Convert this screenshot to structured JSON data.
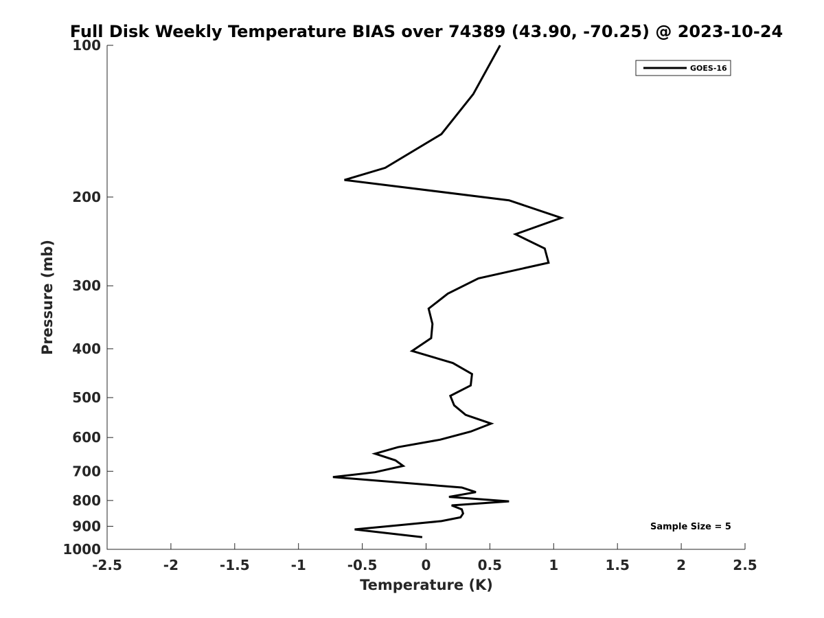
{
  "chart_data": {
    "type": "line",
    "title": "Full Disk Weekly Temperature BIAS over 74389 (43.90, -70.25) @ 2023-10-24",
    "xlabel": "Temperature (K)",
    "ylabel": "Pressure (mb)",
    "xlim": [
      -2.5,
      2.5
    ],
    "ylim": [
      100,
      1000
    ],
    "y_scale": "log",
    "y_reversed": true,
    "x_ticks": [
      -2.5,
      -2,
      -1.5,
      -1,
      -0.5,
      0,
      0.5,
      1,
      1.5,
      2,
      2.5
    ],
    "x_tick_labels": [
      "-2.5",
      "-2",
      "-1.5",
      "-1",
      "-0.5",
      "0",
      "0.5",
      "1",
      "1.5",
      "2",
      "2.5"
    ],
    "y_ticks": [
      100,
      200,
      300,
      400,
      500,
      600,
      700,
      800,
      900,
      1000
    ],
    "y_tick_labels": [
      "100",
      "200",
      "300",
      "400",
      "500",
      "600",
      "700",
      "800",
      "900",
      "1000"
    ],
    "grid": false,
    "legend_position": "top-right",
    "annotation": "Sample Size = 5",
    "series": [
      {
        "name": "GOES-16",
        "color": "#000000",
        "points": [
          [
            0.58,
            100
          ],
          [
            0.37,
            125
          ],
          [
            0.12,
            150
          ],
          [
            -0.32,
            175
          ],
          [
            -0.64,
            185
          ],
          [
            0.65,
            203
          ],
          [
            1.06,
            220
          ],
          [
            0.7,
            237
          ],
          [
            0.93,
            253
          ],
          [
            0.96,
            270
          ],
          [
            0.41,
            290
          ],
          [
            0.17,
            311
          ],
          [
            0.02,
            333
          ],
          [
            0.05,
            357
          ],
          [
            0.04,
            381
          ],
          [
            -0.11,
            404
          ],
          [
            0.21,
            427
          ],
          [
            0.36,
            449
          ],
          [
            0.35,
            473
          ],
          [
            0.19,
            496
          ],
          [
            0.22,
            518
          ],
          [
            0.31,
            541
          ],
          [
            0.51,
            563
          ],
          [
            0.35,
            584
          ],
          [
            0.11,
            606
          ],
          [
            -0.22,
            627
          ],
          [
            -0.4,
            646
          ],
          [
            -0.24,
            666
          ],
          [
            -0.18,
            683
          ],
          [
            -0.4,
            703
          ],
          [
            -0.73,
            719
          ],
          [
            0.28,
            754
          ],
          [
            0.39,
            770
          ],
          [
            0.18,
            787
          ],
          [
            0.65,
            803
          ],
          [
            0.2,
            818
          ],
          [
            0.28,
            833
          ],
          [
            0.29,
            849
          ],
          [
            0.27,
            864
          ],
          [
            0.12,
            879
          ],
          [
            -0.22,
            896
          ],
          [
            -0.56,
            913
          ],
          [
            -0.03,
            946
          ]
        ]
      }
    ]
  }
}
